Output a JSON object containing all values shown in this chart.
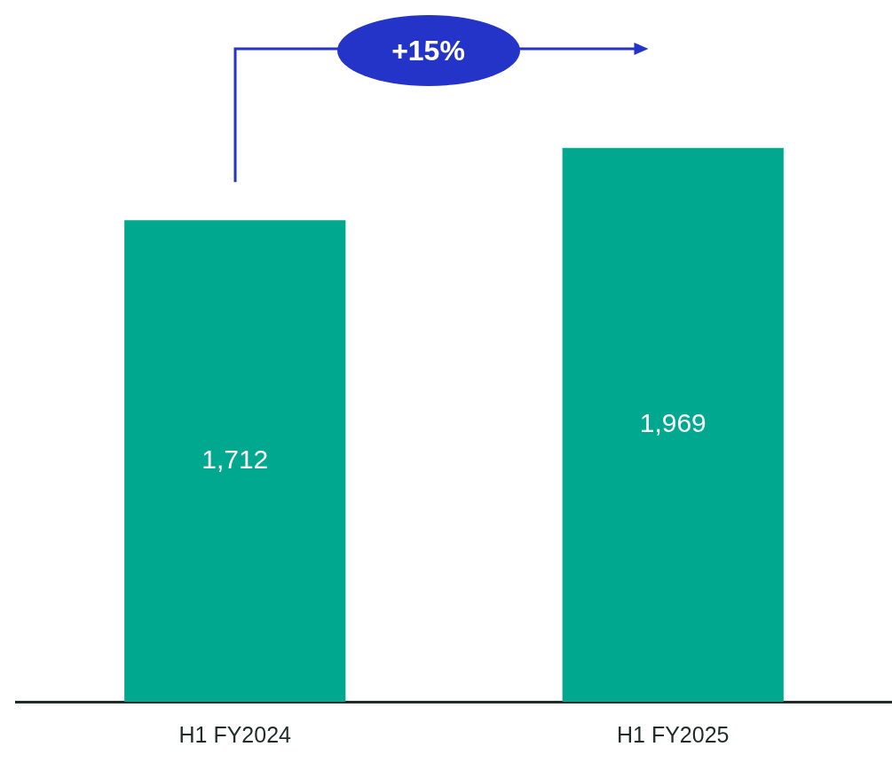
{
  "chart_data": {
    "type": "bar",
    "categories": [
      "H1 FY2024",
      "H1 FY2025"
    ],
    "values": [
      1712,
      1969
    ],
    "value_labels": [
      "1,712",
      "1,969"
    ],
    "color": "#00a88f",
    "grid": false,
    "legend": false,
    "annotations": [
      "+15%"
    ]
  }
}
